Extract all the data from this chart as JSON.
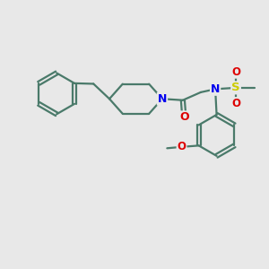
{
  "bg_color": "#e8e8e8",
  "bond_color": "#4a7a6a",
  "bond_width": 1.6,
  "atom_colors": {
    "N": "#0000ee",
    "O": "#dd0000",
    "S": "#cccc00",
    "C": "#4a7a6a"
  }
}
